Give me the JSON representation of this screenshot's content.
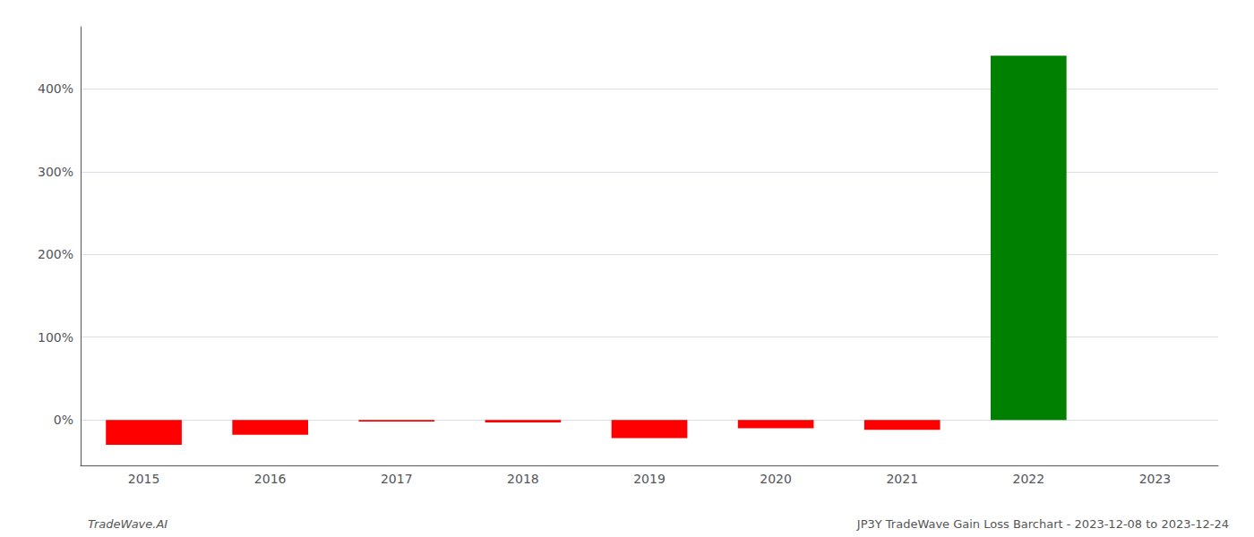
{
  "chart_data": {
    "type": "bar",
    "categories": [
      "2015",
      "2016",
      "2017",
      "2018",
      "2019",
      "2020",
      "2021",
      "2022",
      "2023"
    ],
    "values": [
      -0.3,
      -0.18,
      -0.02,
      -0.03,
      -0.22,
      -0.1,
      -0.12,
      4.4,
      0.0
    ],
    "colors": [
      "red",
      "red",
      "red",
      "red",
      "red",
      "red",
      "red",
      "green",
      "red"
    ],
    "ylim": [
      -0.55,
      4.75
    ],
    "yticks": [
      {
        "value": 0,
        "label": "0%"
      },
      {
        "value": 1,
        "label": "100%"
      },
      {
        "value": 2,
        "label": "200%"
      },
      {
        "value": 3,
        "label": "300%"
      },
      {
        "value": 4,
        "label": "400%"
      }
    ],
    "grid": true,
    "annotations": [
      "TradeWave.AI",
      "JP3Y TradeWave Gain Loss Barchart - 2023-12-08 to 2023-12-24"
    ]
  }
}
